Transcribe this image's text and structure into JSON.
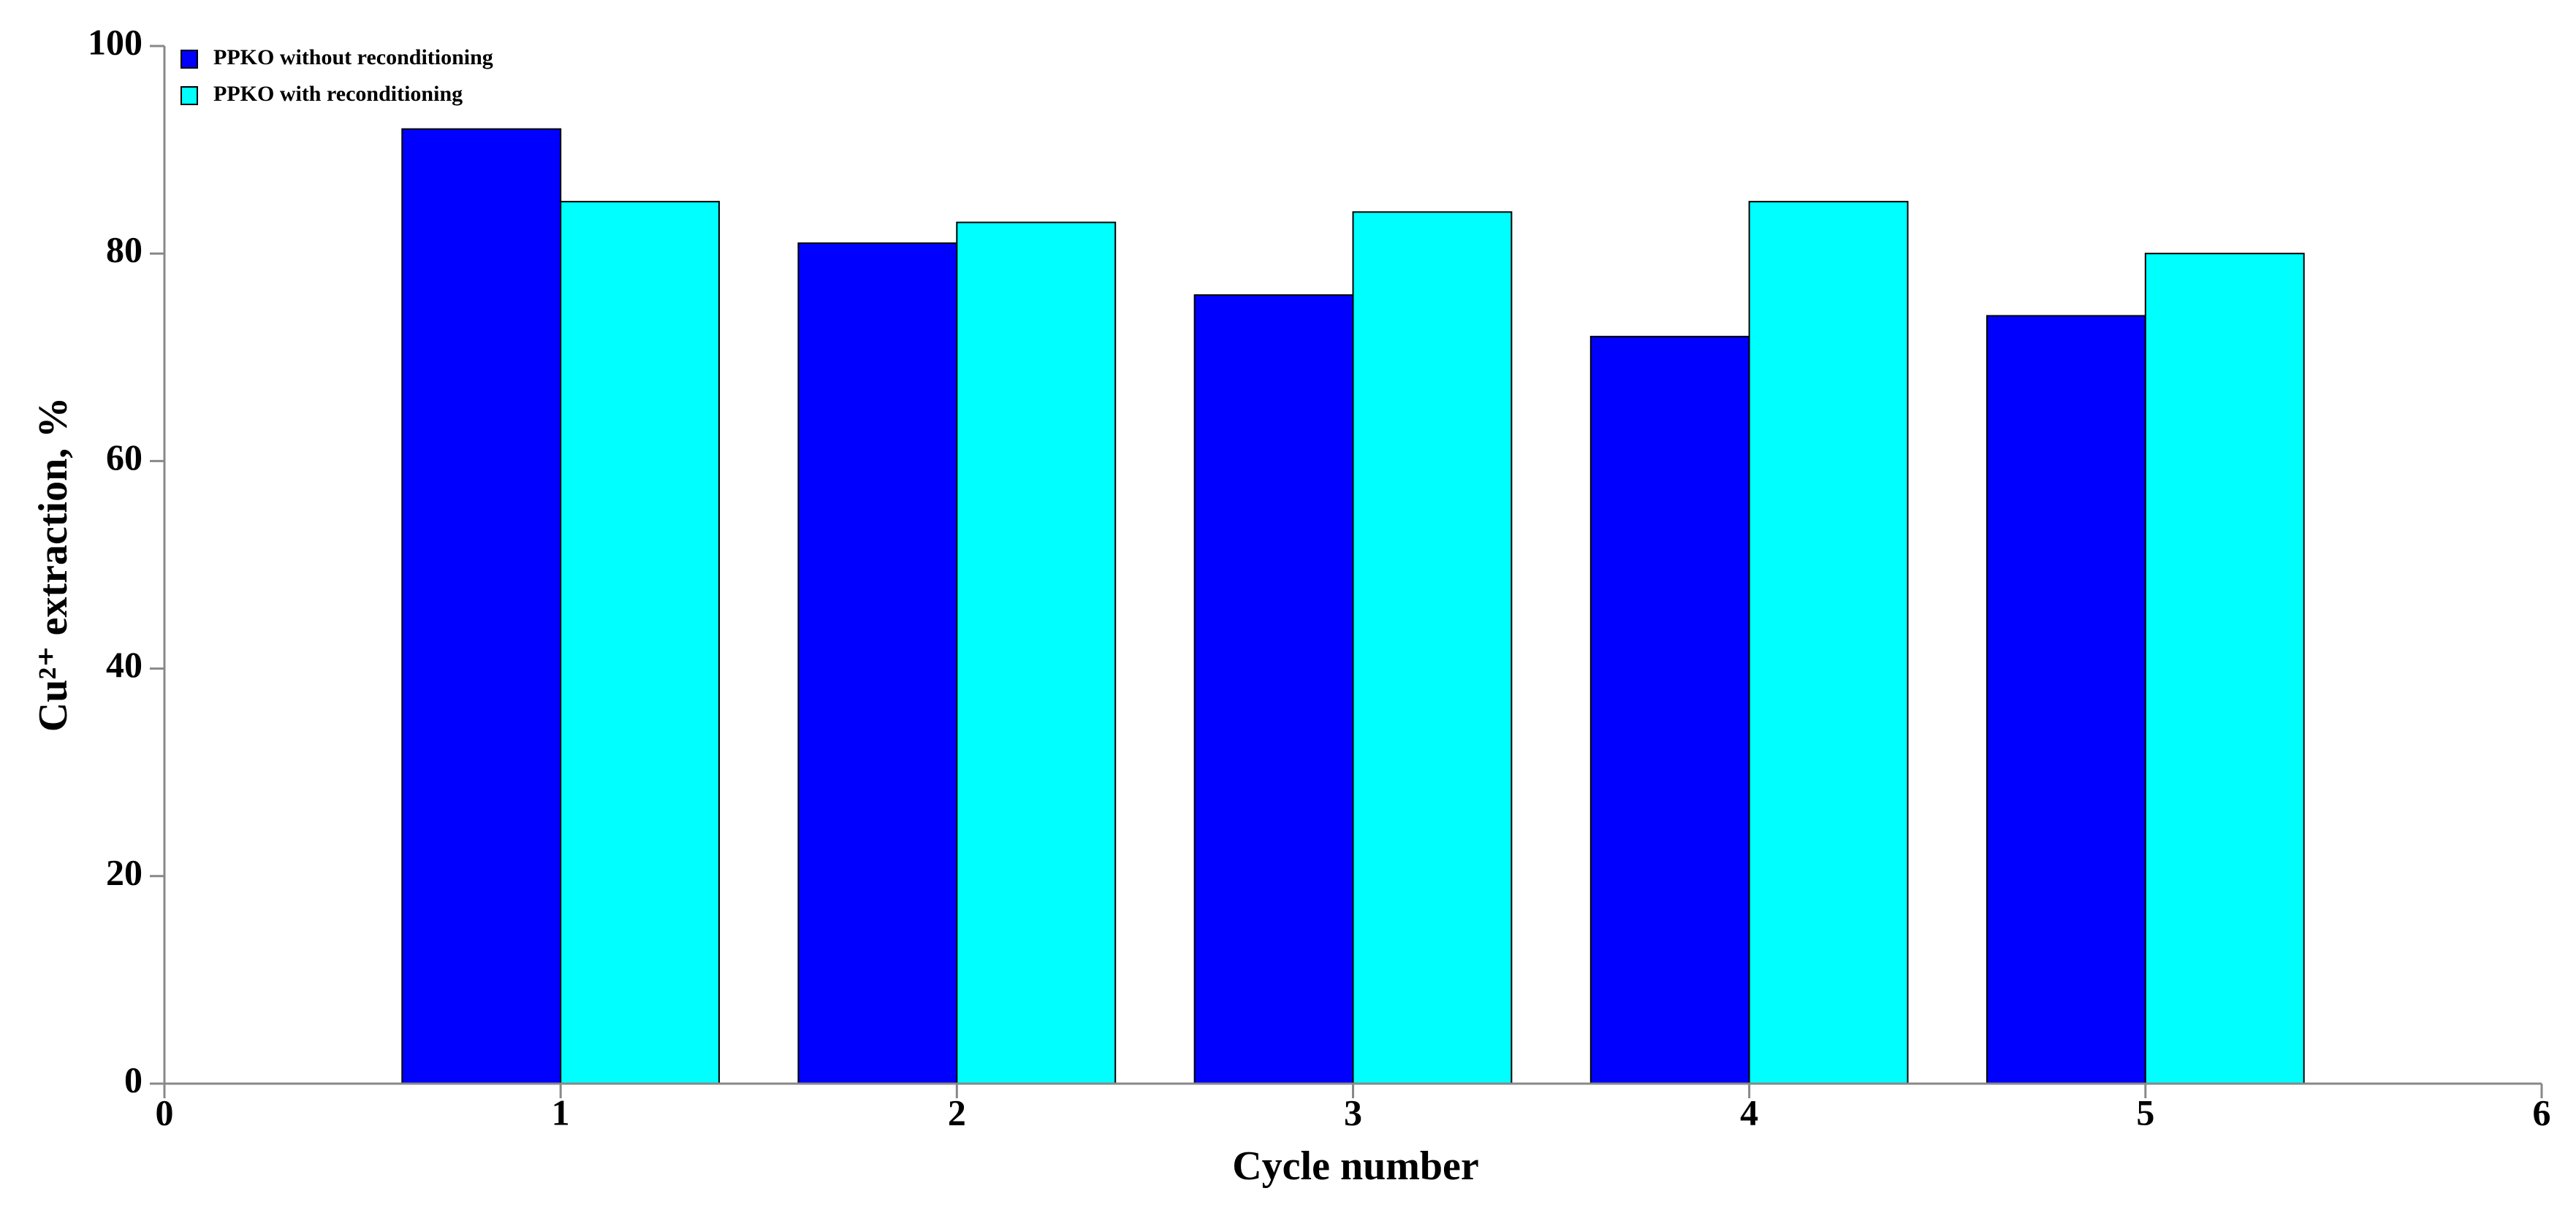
{
  "chart_data": {
    "type": "bar",
    "xlabel": "Cycle number",
    "ylabel": "Cu²⁺ extraction, %",
    "x": [
      1,
      2,
      3,
      4,
      5
    ],
    "series": [
      {
        "name": "PPKO without reconditioning",
        "color": "#0000ff",
        "values": [
          92,
          81,
          76,
          72,
          74
        ]
      },
      {
        "name": "PPKO with reconditioning",
        "color": "#00ffff",
        "values": [
          85,
          83,
          84,
          85,
          80
        ]
      }
    ],
    "xlim": [
      0,
      6
    ],
    "xticks": [
      0,
      1,
      2,
      3,
      4,
      5,
      6
    ],
    "ylim": [
      0,
      100
    ],
    "yticks": [
      0,
      20,
      40,
      60,
      80,
      100
    ],
    "legend": "upper left"
  }
}
